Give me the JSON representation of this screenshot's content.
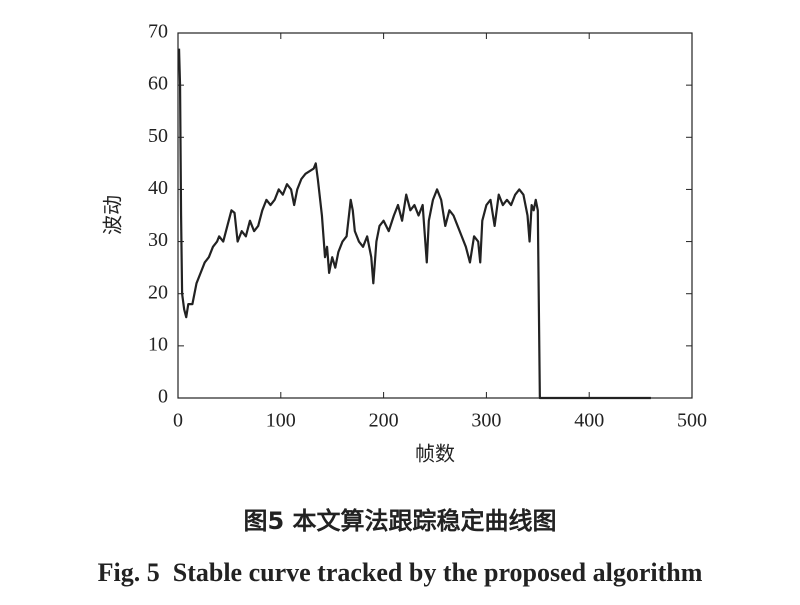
{
  "chart_data": {
    "type": "line",
    "xlabel": "帧数",
    "ylabel": "波动",
    "caption_cn": "图5  本文算法跟踪稳定曲线图",
    "caption_en": "Fig. 5  Stable curve tracked by the proposed algorithm",
    "x": [
      1,
      2,
      3,
      4,
      6,
      8,
      10,
      14,
      18,
      22,
      26,
      30,
      34,
      38,
      40,
      44,
      48,
      52,
      55,
      58,
      62,
      66,
      70,
      74,
      78,
      82,
      86,
      90,
      94,
      98,
      102,
      106,
      110,
      113,
      116,
      120,
      124,
      128,
      132,
      134,
      136,
      140,
      143,
      145,
      147,
      150,
      153,
      156,
      160,
      164,
      168,
      170,
      172,
      176,
      180,
      184,
      188,
      190,
      193,
      196,
      200,
      205,
      210,
      214,
      218,
      222,
      226,
      230,
      234,
      238,
      242,
      244,
      248,
      252,
      256,
      260,
      264,
      268,
      272,
      276,
      280,
      284,
      288,
      292,
      294,
      296,
      300,
      304,
      308,
      312,
      316,
      320,
      324,
      328,
      332,
      336,
      340,
      342,
      344,
      346,
      348,
      350,
      352,
      360,
      400,
      460
    ],
    "series": [
      {
        "color": "#222222",
        "values": [
          67,
          60,
          35,
          20,
          17,
          15.5,
          18,
          18,
          22,
          24,
          26,
          27,
          29,
          30,
          31,
          30,
          33,
          36,
          35.5,
          30,
          32,
          31,
          34,
          32,
          33,
          36,
          38,
          37,
          38,
          40,
          39,
          41,
          40,
          37,
          40,
          42,
          43,
          43.5,
          44,
          45,
          42,
          35,
          27,
          29,
          24,
          27,
          25,
          28,
          30,
          31,
          38,
          36,
          32,
          30,
          29,
          31,
          27,
          22,
          30,
          33,
          34,
          32,
          35,
          37,
          34,
          39,
          36,
          37,
          35,
          37,
          26,
          34,
          38,
          40,
          38,
          33,
          36,
          35,
          33,
          31,
          29,
          26,
          31,
          30,
          26,
          34,
          37,
          38,
          33,
          39,
          37,
          38,
          37,
          39,
          40,
          39,
          35,
          30,
          37,
          36,
          38,
          36,
          0,
          0,
          0,
          0
        ]
      }
    ],
    "xlim": [
      0,
      500
    ],
    "ylim": [
      0,
      70
    ],
    "xticks": [
      0,
      100,
      200,
      300,
      400,
      500
    ],
    "yticks": [
      0,
      10,
      20,
      30,
      40,
      50,
      60,
      70
    ]
  }
}
